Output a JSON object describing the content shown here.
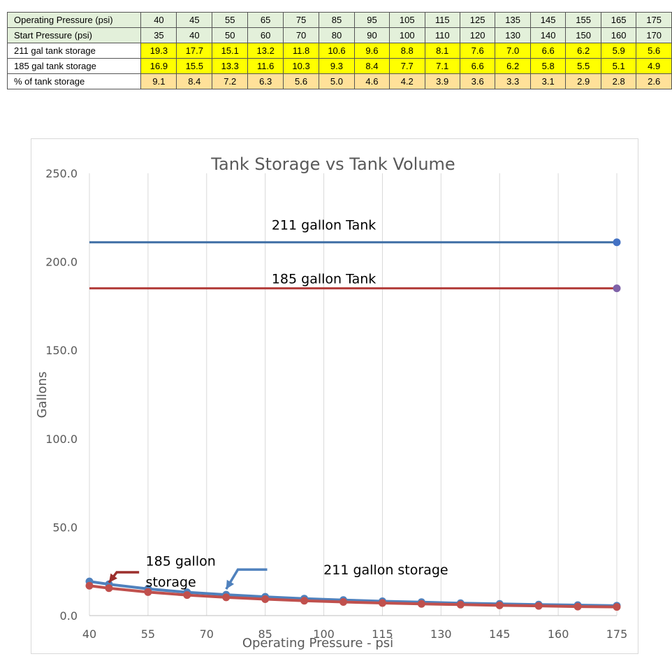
{
  "table": {
    "rows": [
      {
        "label": "Operating Pressure (psi)",
        "style": "hdr",
        "values": [
          "40",
          "45",
          "55",
          "65",
          "75",
          "85",
          "95",
          "105",
          "115",
          "125",
          "135",
          "145",
          "155",
          "165",
          "175"
        ]
      },
      {
        "label": "Start Pressure (psi)",
        "style": "hdr",
        "values": [
          "35",
          "40",
          "50",
          "60",
          "70",
          "80",
          "90",
          "100",
          "110",
          "120",
          "130",
          "140",
          "150",
          "160",
          "170"
        ]
      },
      {
        "label": "211 gal tank storage",
        "style": "yel",
        "values": [
          "19.3",
          "17.7",
          "15.1",
          "13.2",
          "11.8",
          "10.6",
          "9.6",
          "8.8",
          "8.1",
          "7.6",
          "7.0",
          "6.6",
          "6.2",
          "5.9",
          "5.6"
        ]
      },
      {
        "label": "185 gal tank storage",
        "style": "yel",
        "values": [
          "16.9",
          "15.5",
          "13.3",
          "11.6",
          "10.3",
          "9.3",
          "8.4",
          "7.7",
          "7.1",
          "6.6",
          "6.2",
          "5.8",
          "5.5",
          "5.1",
          "4.9"
        ]
      },
      {
        "label": "% of tank storage",
        "style": "pct",
        "values": [
          "9.1",
          "8.4",
          "7.2",
          "6.3",
          "5.6",
          "5.0",
          "4.6",
          "4.2",
          "3.9",
          "3.6",
          "3.3",
          "3.1",
          "2.9",
          "2.8",
          "2.6"
        ]
      }
    ]
  },
  "chart_data": {
    "type": "line",
    "title": "Tank Storage vs Tank Volume",
    "xlabel": "Operating Pressure - psi",
    "ylabel": "Gallons",
    "xlim": [
      40,
      175
    ],
    "ylim": [
      0,
      250
    ],
    "x_ticks": [
      "40",
      "55",
      "70",
      "85",
      "100",
      "115",
      "130",
      "145",
      "160",
      "175"
    ],
    "x_tick_values": [
      40,
      55,
      70,
      85,
      100,
      115,
      130,
      145,
      160,
      175
    ],
    "y_ticks": [
      "0.0",
      "50.0",
      "100.0",
      "150.0",
      "200.0",
      "250.0"
    ],
    "y_tick_values": [
      0,
      50,
      100,
      150,
      200,
      250
    ],
    "grid": "vertical",
    "legend": "none",
    "series": [
      {
        "color": "#3f6fa5",
        "style": "hline",
        "x": [
          40,
          175
        ],
        "values": [
          211,
          211
        ],
        "marker_color": "#4472c4"
      },
      {
        "color": "#b23c3a",
        "style": "hline",
        "x": [
          40,
          175
        ],
        "values": [
          185,
          185
        ],
        "marker_color": "#7f62a8"
      },
      {
        "color": "#4f81bd",
        "style": "markers",
        "x": [
          40,
          45,
          55,
          65,
          75,
          85,
          95,
          105,
          115,
          125,
          135,
          145,
          155,
          165,
          175
        ],
        "values": [
          19.3,
          17.7,
          15.1,
          13.2,
          11.8,
          10.6,
          9.6,
          8.8,
          8.1,
          7.6,
          7.0,
          6.6,
          6.2,
          5.9,
          5.6
        ]
      },
      {
        "color": "#c0504d",
        "style": "markers",
        "x": [
          40,
          45,
          55,
          65,
          75,
          85,
          95,
          105,
          115,
          125,
          135,
          145,
          155,
          165,
          175
        ],
        "values": [
          16.9,
          15.5,
          13.3,
          11.6,
          10.3,
          9.3,
          8.4,
          7.7,
          7.1,
          6.6,
          6.2,
          5.8,
          5.5,
          5.1,
          4.9
        ]
      }
    ],
    "annotations": [
      {
        "id": "label-211-tank",
        "text": "211 gallon Tank",
        "x": 100,
        "y": 221
      },
      {
        "id": "label-185-tank",
        "text": "185 gallon Tank",
        "x": 100,
        "y": 190.5
      },
      {
        "id": "label-185-storage",
        "lines": [
          "185 gallon",
          "storage"
        ],
        "x": 46,
        "y": 31,
        "arrow_color": "#9c2f2c",
        "arrow_to": [
          45,
          15.5
        ],
        "elbow": [
          47,
          24.5
        ]
      },
      {
        "id": "label-211-storage",
        "text": "211 gallon storage",
        "x": 101,
        "y": 26,
        "arrow_color": "#4f81bd",
        "arrow_to": [
          75,
          11.8
        ],
        "elbow": [
          78,
          26
        ]
      }
    ]
  }
}
